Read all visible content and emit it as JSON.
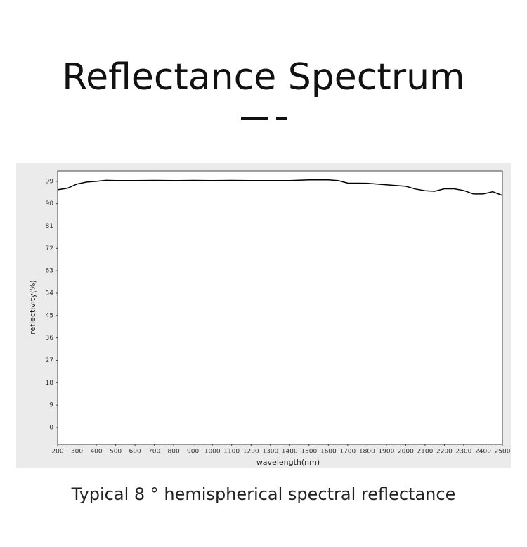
{
  "chart_data": {
    "type": "line",
    "title": "Reflectance Spectrum",
    "caption": "Typical 8 ° hemispherical spectral reflectance",
    "x_label": "wavelength(nm)",
    "y_label": "reflectivity(%)",
    "series": [
      {
        "color": "#000000",
        "x": [
          200,
          250,
          300,
          350,
          400,
          450,
          500,
          600,
          700,
          800,
          900,
          1000,
          1100,
          1200,
          1300,
          1400,
          1500,
          1600,
          1650,
          1700,
          1800,
          1900,
          2000,
          2050,
          2100,
          2150,
          2200,
          2250,
          2300,
          2350,
          2400,
          2450,
          2500
        ],
        "values": [
          95.6,
          96.2,
          97.9,
          98.7,
          99.0,
          99.4,
          99.3,
          99.3,
          99.4,
          99.3,
          99.4,
          99.3,
          99.4,
          99.3,
          99.3,
          99.3,
          99.6,
          99.6,
          99.3,
          98.3,
          98.2,
          97.6,
          97.0,
          95.9,
          95.2,
          95.0,
          96.0,
          96.0,
          95.3,
          93.9,
          93.9,
          94.8,
          93.3
        ]
      }
    ],
    "xlim": [
      200,
      2500
    ],
    "xticks": [
      200,
      300,
      400,
      500,
      600,
      700,
      800,
      900,
      1000,
      1100,
      1200,
      1300,
      1400,
      1500,
      1600,
      1700,
      1800,
      1900,
      2000,
      2100,
      2200,
      2300,
      2400,
      2500
    ],
    "ylim": [
      -6.8,
      103.2
    ],
    "yticks": [
      0,
      9,
      18,
      27,
      36,
      45,
      54,
      63,
      72,
      81,
      90,
      99
    ]
  }
}
